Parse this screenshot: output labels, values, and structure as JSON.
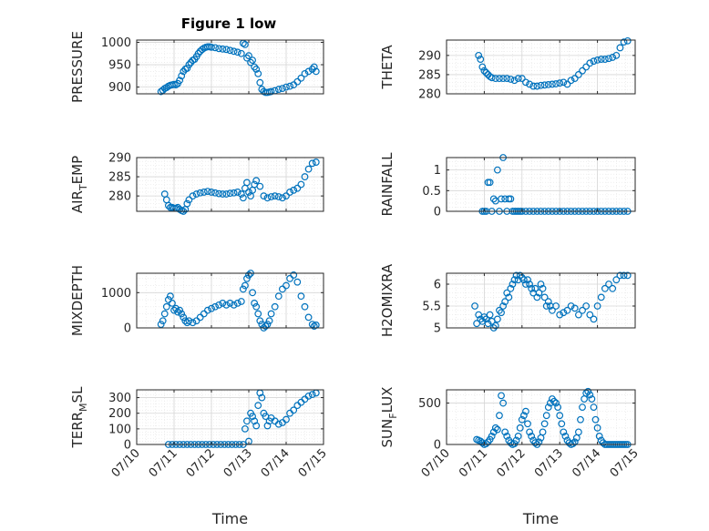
{
  "figure_title": "Figure 1 low",
  "marker_color": "#0072bd",
  "x_tick_labels": [
    "07/10",
    "07/11",
    "07/12",
    "07/13",
    "07/14",
    "07/15"
  ],
  "xlabel": "Time",
  "chart_data": [
    {
      "type": "scatter",
      "ylabel": "PRESSURE",
      "ylim": [
        885,
        1005
      ],
      "yticks": [
        900,
        950,
        1000
      ],
      "xlim": [
        0,
        5
      ],
      "x": [
        0.65,
        0.7,
        0.75,
        0.8,
        0.85,
        0.9,
        0.95,
        1.0,
        1.05,
        1.1,
        1.15,
        1.2,
        1.25,
        1.3,
        1.35,
        1.4,
        1.45,
        1.5,
        1.55,
        1.6,
        1.65,
        1.7,
        1.75,
        1.8,
        1.85,
        1.9,
        1.95,
        2.0,
        2.1,
        2.2,
        2.3,
        2.4,
        2.5,
        2.6,
        2.7,
        2.8,
        2.85,
        2.9,
        2.95,
        3.0,
        3.05,
        3.1,
        3.15,
        3.2,
        3.25,
        3.3,
        3.35,
        3.4,
        3.45,
        3.5,
        3.55,
        3.6,
        3.7,
        3.8,
        3.9,
        4.0,
        4.1,
        4.2,
        4.3,
        4.4,
        4.5,
        4.6,
        4.7,
        4.75,
        4.8
      ],
      "y": [
        890,
        893,
        897,
        899,
        902,
        904,
        905,
        906,
        905,
        908,
        915,
        925,
        935,
        940,
        942,
        950,
        955,
        960,
        962,
        968,
        975,
        980,
        984,
        987,
        989,
        990,
        990,
        989,
        988,
        986,
        985,
        984,
        982,
        980,
        978,
        975,
        998,
        995,
        965,
        970,
        955,
        960,
        945,
        940,
        930,
        910,
        895,
        890,
        888,
        888,
        889,
        890,
        892,
        895,
        897,
        900,
        902,
        905,
        912,
        920,
        930,
        935,
        940,
        945,
        935
      ]
    },
    {
      "type": "scatter",
      "ylabel": "THETA",
      "ylim": [
        280,
        294
      ],
      "yticks": [
        280,
        285,
        290
      ],
      "xlim": [
        0,
        5
      ],
      "x": [
        0.85,
        0.9,
        0.95,
        1.0,
        1.05,
        1.1,
        1.15,
        1.2,
        1.3,
        1.4,
        1.5,
        1.6,
        1.7,
        1.8,
        1.9,
        2.0,
        2.1,
        2.2,
        2.3,
        2.4,
        2.5,
        2.6,
        2.7,
        2.8,
        2.9,
        3.0,
        3.1,
        3.2,
        3.3,
        3.4,
        3.5,
        3.6,
        3.7,
        3.8,
        3.9,
        4.0,
        4.1,
        4.2,
        4.3,
        4.4,
        4.5,
        4.6,
        4.7,
        4.8
      ],
      "y": [
        290,
        289,
        287,
        286,
        285.5,
        285,
        284.5,
        284.2,
        284,
        284,
        284,
        284,
        283.8,
        283.5,
        284,
        284,
        283,
        282.5,
        282,
        282,
        282.2,
        282.3,
        282.4,
        282.5,
        282.6,
        282.8,
        283,
        282.5,
        283.5,
        284,
        285,
        286,
        287,
        288,
        288.5,
        288.8,
        289,
        289,
        289.2,
        289.5,
        290,
        292,
        293.5,
        293.8
      ]
    },
    {
      "type": "scatter",
      "ylabel": "AIR_TEMP",
      "ylim": [
        276,
        290
      ],
      "yticks": [
        280,
        285,
        290
      ],
      "xlim": [
        0,
        5
      ],
      "x": [
        0.75,
        0.8,
        0.85,
        0.9,
        0.95,
        1.0,
        1.05,
        1.1,
        1.15,
        1.2,
        1.25,
        1.3,
        1.35,
        1.4,
        1.5,
        1.6,
        1.7,
        1.8,
        1.9,
        2.0,
        2.1,
        2.2,
        2.3,
        2.4,
        2.5,
        2.6,
        2.7,
        2.8,
        2.85,
        2.9,
        2.95,
        3.0,
        3.05,
        3.1,
        3.15,
        3.2,
        3.3,
        3.4,
        3.5,
        3.6,
        3.7,
        3.8,
        3.9,
        4.0,
        4.1,
        4.2,
        4.3,
        4.4,
        4.5,
        4.6,
        4.7,
        4.8
      ],
      "y": [
        280.5,
        279,
        277.5,
        277,
        277,
        276.8,
        276.8,
        277,
        276.5,
        276.2,
        276,
        276.5,
        278,
        279,
        280,
        280.5,
        280.8,
        281,
        281.2,
        281,
        280.8,
        280.6,
        280.5,
        280.5,
        280.7,
        280.8,
        281,
        280.5,
        279.5,
        282,
        283.5,
        281,
        280,
        281.5,
        283,
        284,
        282.5,
        280,
        279.5,
        279.8,
        280,
        279.8,
        279.5,
        280,
        281,
        281.5,
        282,
        283,
        285,
        287,
        288.5,
        288.8
      ]
    },
    {
      "type": "scatter",
      "ylabel": "RAINFALL",
      "ylim": [
        0,
        1.3
      ],
      "yticks": [
        0,
        0.5,
        1
      ],
      "xlim": [
        0,
        5
      ],
      "x": [
        0.95,
        1.0,
        1.05,
        1.1,
        1.15,
        1.2,
        1.25,
        1.3,
        1.35,
        1.4,
        1.45,
        1.5,
        1.55,
        1.6,
        1.65,
        1.7,
        1.75,
        1.8,
        1.85,
        1.9,
        1.95,
        2.0,
        2.1,
        2.2,
        2.3,
        2.4,
        2.5,
        2.6,
        2.7,
        2.8,
        2.9,
        3.0,
        3.1,
        3.2,
        3.3,
        3.4,
        3.5,
        3.6,
        3.7,
        3.8,
        3.9,
        4.0,
        4.1,
        4.2,
        4.3,
        4.4,
        4.5,
        4.6,
        4.7,
        4.8
      ],
      "y": [
        0,
        0,
        0,
        0.7,
        0.7,
        0,
        0.3,
        0.25,
        1.0,
        0,
        0.3,
        1.3,
        0.3,
        0,
        0.3,
        0.3,
        0,
        0,
        0,
        0,
        0,
        0,
        0,
        0,
        0,
        0,
        0,
        0,
        0,
        0,
        0,
        0,
        0,
        0,
        0,
        0,
        0,
        0,
        0,
        0,
        0,
        0,
        0,
        0,
        0,
        0,
        0,
        0,
        0,
        0
      ]
    },
    {
      "type": "scatter",
      "ylabel": "MIXDEPTH",
      "ylim": [
        0,
        1550
      ],
      "yticks": [
        0,
        1000
      ],
      "xlim": [
        0,
        5
      ],
      "x": [
        0.65,
        0.7,
        0.75,
        0.8,
        0.85,
        0.9,
        0.95,
        1.0,
        1.05,
        1.1,
        1.15,
        1.2,
        1.25,
        1.3,
        1.35,
        1.4,
        1.5,
        1.6,
        1.7,
        1.8,
        1.9,
        2.0,
        2.1,
        2.2,
        2.3,
        2.4,
        2.5,
        2.6,
        2.7,
        2.8,
        2.85,
        2.9,
        2.95,
        3.0,
        3.05,
        3.1,
        3.15,
        3.2,
        3.25,
        3.3,
        3.35,
        3.4,
        3.45,
        3.5,
        3.55,
        3.6,
        3.7,
        3.8,
        3.9,
        4.0,
        4.1,
        4.2,
        4.3,
        4.4,
        4.5,
        4.6,
        4.7,
        4.75,
        4.8
      ],
      "y": [
        100,
        200,
        400,
        600,
        800,
        900,
        700,
        500,
        550,
        450,
        500,
        400,
        300,
        200,
        150,
        200,
        150,
        200,
        300,
        400,
        500,
        550,
        600,
        650,
        700,
        650,
        700,
        650,
        700,
        750,
        1100,
        1200,
        1400,
        1500,
        1550,
        1000,
        700,
        600,
        400,
        200,
        100,
        0,
        50,
        100,
        200,
        400,
        600,
        900,
        1100,
        1200,
        1400,
        1500,
        1300,
        900,
        600,
        300,
        100,
        50,
        80
      ]
    },
    {
      "type": "scatter",
      "ylabel": "H2OMIXRA",
      "ylim": [
        5,
        6.25
      ],
      "yticks": [
        5,
        5.5,
        6
      ],
      "xlim": [
        0,
        5
      ],
      "x": [
        0.75,
        0.8,
        0.85,
        0.9,
        0.95,
        1.0,
        1.05,
        1.1,
        1.15,
        1.2,
        1.25,
        1.3,
        1.35,
        1.4,
        1.45,
        1.5,
        1.55,
        1.6,
        1.65,
        1.7,
        1.75,
        1.8,
        1.85,
        1.9,
        1.95,
        2.0,
        2.05,
        2.1,
        2.15,
        2.2,
        2.25,
        2.3,
        2.35,
        2.4,
        2.45,
        2.5,
        2.55,
        2.6,
        2.65,
        2.7,
        2.75,
        2.8,
        2.9,
        3.0,
        3.1,
        3.2,
        3.3,
        3.4,
        3.5,
        3.6,
        3.7,
        3.8,
        3.9,
        4.0,
        4.1,
        4.2,
        4.3,
        4.4,
        4.5,
        4.6,
        4.7,
        4.8
      ],
      "y": [
        5.5,
        5.1,
        5.3,
        5.2,
        5.15,
        5.25,
        5.2,
        5.1,
        5.3,
        5.15,
        5.0,
        5.05,
        5.2,
        5.4,
        5.35,
        5.5,
        5.6,
        5.8,
        5.7,
        5.9,
        6.0,
        6.1,
        6.2,
        6.1,
        6.2,
        6.15,
        6.1,
        6.0,
        6.1,
        6.0,
        5.9,
        5.8,
        5.9,
        5.7,
        5.8,
        6.0,
        5.9,
        5.7,
        5.5,
        5.6,
        5.5,
        5.4,
        5.5,
        5.3,
        5.35,
        5.4,
        5.5,
        5.45,
        5.3,
        5.4,
        5.5,
        5.3,
        5.2,
        5.5,
        5.7,
        5.9,
        6.0,
        5.9,
        6.1,
        6.2,
        6.2,
        6.2
      ]
    },
    {
      "type": "scatter",
      "ylabel": "TERR_MSL",
      "ylim": [
        0,
        350
      ],
      "yticks": [
        0,
        100,
        200,
        300
      ],
      "xlim": [
        0,
        5
      ],
      "x": [
        0.85,
        0.95,
        1.05,
        1.15,
        1.25,
        1.35,
        1.45,
        1.55,
        1.65,
        1.75,
        1.85,
        1.95,
        2.05,
        2.15,
        2.25,
        2.35,
        2.45,
        2.55,
        2.65,
        2.75,
        2.85,
        2.9,
        2.95,
        3.0,
        3.05,
        3.1,
        3.15,
        3.2,
        3.25,
        3.3,
        3.35,
        3.4,
        3.45,
        3.5,
        3.55,
        3.6,
        3.7,
        3.8,
        3.9,
        4.0,
        4.1,
        4.2,
        4.3,
        4.4,
        4.5,
        4.6,
        4.7,
        4.8
      ],
      "y": [
        0,
        0,
        0,
        0,
        0,
        0,
        0,
        0,
        0,
        0,
        0,
        0,
        0,
        0,
        0,
        0,
        0,
        0,
        0,
        0,
        0,
        100,
        150,
        20,
        200,
        180,
        150,
        120,
        250,
        330,
        300,
        200,
        180,
        120,
        150,
        170,
        150,
        130,
        140,
        160,
        200,
        220,
        250,
        270,
        290,
        310,
        320,
        330
      ]
    },
    {
      "type": "scatter",
      "ylabel": "SUN_FLUX",
      "ylim": [
        0,
        660
      ],
      "yticks": [
        0,
        500
      ],
      "xlim": [
        0,
        5
      ],
      "x": [
        0.8,
        0.85,
        0.9,
        0.95,
        1.0,
        1.05,
        1.1,
        1.15,
        1.2,
        1.25,
        1.3,
        1.35,
        1.4,
        1.45,
        1.5,
        1.55,
        1.6,
        1.65,
        1.7,
        1.75,
        1.8,
        1.85,
        1.9,
        1.95,
        2.0,
        2.05,
        2.1,
        2.15,
        2.2,
        2.25,
        2.3,
        2.35,
        2.4,
        2.45,
        2.5,
        2.55,
        2.6,
        2.65,
        2.7,
        2.75,
        2.8,
        2.85,
        2.9,
        2.95,
        3.0,
        3.05,
        3.1,
        3.15,
        3.2,
        3.25,
        3.3,
        3.35,
        3.4,
        3.45,
        3.5,
        3.55,
        3.6,
        3.65,
        3.7,
        3.75,
        3.8,
        3.85,
        3.9,
        3.95,
        4.0,
        4.05,
        4.1,
        4.15,
        4.2,
        4.25,
        4.3,
        4.35,
        4.4,
        4.45,
        4.5,
        4.55,
        4.6,
        4.65,
        4.7,
        4.75,
        4.8
      ],
      "y": [
        60,
        50,
        40,
        20,
        0,
        10,
        30,
        60,
        100,
        150,
        200,
        180,
        350,
        590,
        500,
        150,
        100,
        50,
        20,
        0,
        10,
        50,
        100,
        200,
        300,
        350,
        400,
        250,
        150,
        100,
        50,
        20,
        0,
        30,
        80,
        150,
        250,
        350,
        450,
        500,
        550,
        520,
        500,
        450,
        350,
        250,
        150,
        100,
        50,
        20,
        0,
        10,
        30,
        80,
        150,
        300,
        450,
        550,
        620,
        640,
        600,
        550,
        450,
        300,
        200,
        100,
        50,
        20,
        0,
        0,
        0,
        0,
        0,
        0,
        0,
        0,
        0,
        0,
        0,
        0,
        0
      ]
    }
  ]
}
